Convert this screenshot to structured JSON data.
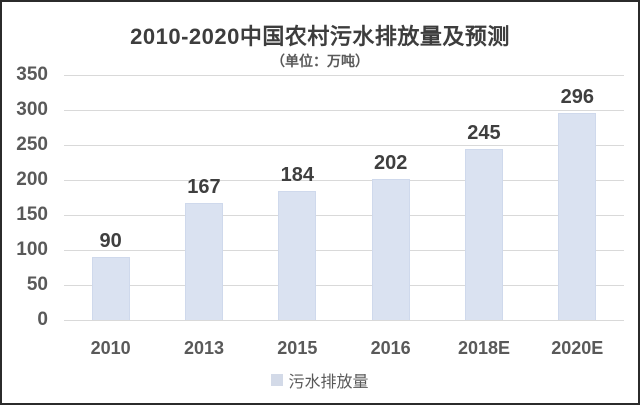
{
  "chart_data": {
    "type": "bar",
    "title": "2010-2020中国农村污水排放量及预测",
    "subtitle": "（单位：万吨）",
    "categories": [
      "2010",
      "2013",
      "2015",
      "2016",
      "2018E",
      "2020E"
    ],
    "values": [
      90,
      167,
      184,
      202,
      245,
      296
    ],
    "series_name": "污水排放量",
    "xlabel": "",
    "ylabel": "",
    "ylim": [
      0,
      350
    ],
    "yticks": [
      0,
      50,
      100,
      150,
      200,
      250,
      300,
      350
    ],
    "grid": "horizontal",
    "legend_position": "bottom",
    "data_labels": true,
    "colors": {
      "bar_fill": "#dae2f1",
      "bar_edge": "#cfd9ec",
      "legend_swatch": "#d3dae8",
      "grid_line": "#d9d9d9",
      "axis_text": "#595959",
      "value_text": "#3f3f3f",
      "title_text": "#3d3d3d",
      "frame": "#2b2b2b",
      "background": "#ffffff"
    }
  }
}
